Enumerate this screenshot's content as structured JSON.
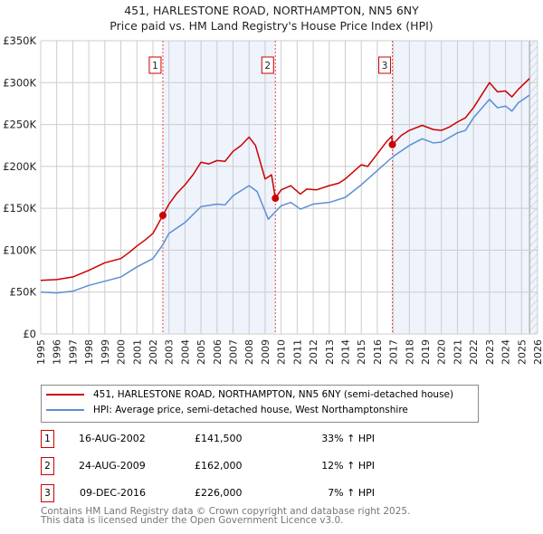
{
  "chart_data": {
    "type": "line",
    "title": "451, HARLESTONE ROAD, NORTHAMPTON, NN5 6NY",
    "subtitle": "Price paid vs. HM Land Registry's House Price Index (HPI)",
    "xlim": [
      1995,
      2026
    ],
    "ylim": [
      0,
      350000
    ],
    "x_ticks": [
      "1995",
      "1996",
      "1997",
      "1998",
      "1999",
      "2000",
      "2001",
      "2002",
      "2003",
      "2004",
      "2005",
      "2006",
      "2007",
      "2008",
      "2009",
      "2010",
      "2011",
      "2012",
      "2013",
      "2014",
      "2015",
      "2016",
      "2017",
      "2018",
      "2019",
      "2020",
      "2021",
      "2022",
      "2023",
      "2024",
      "2025",
      "2026"
    ],
    "y_ticks": [
      {
        "v": 0,
        "l": "£0"
      },
      {
        "v": 50000,
        "l": "£50K"
      },
      {
        "v": 100000,
        "l": "£100K"
      },
      {
        "v": 150000,
        "l": "£150K"
      },
      {
        "v": 200000,
        "l": "£200K"
      },
      {
        "v": 250000,
        "l": "£250K"
      },
      {
        "v": 300000,
        "l": "£300K"
      },
      {
        "v": 350000,
        "l": "£350K"
      }
    ],
    "grid": true,
    "series": [
      {
        "name": "451, HARLESTONE ROAD, NORTHAMPTON, NN5 6NY (semi-detached house)",
        "color": "#cc0000",
        "x": [
          1995,
          1996,
          1997,
          1998,
          1999,
          2000,
          2000.5,
          2001,
          2001.5,
          2002,
          2002.62,
          2003,
          2003.5,
          2004,
          2004.5,
          2005,
          2005.5,
          2006,
          2006.5,
          2007,
          2007.5,
          2008,
          2008.4,
          2008.7,
          2009,
          2009.4,
          2009.64,
          2010,
          2010.6,
          2011.2,
          2011.6,
          2012.2,
          2013,
          2013.6,
          2014,
          2015,
          2015.4,
          2016,
          2016.6,
          2016.9,
          2016.94,
          2017.5,
          2018,
          2018.8,
          2019.5,
          2020,
          2020.5,
          2021,
          2021.5,
          2022,
          2022.5,
          2023,
          2023.5,
          2024,
          2024.4,
          2024.8,
          2025.5
        ],
        "y": [
          64000,
          65000,
          68000,
          76000,
          85000,
          90000,
          97000,
          105000,
          112000,
          120000,
          141500,
          155000,
          168000,
          178000,
          190000,
          205000,
          203000,
          207000,
          206000,
          218000,
          225000,
          235000,
          225000,
          205000,
          185000,
          190000,
          162000,
          172000,
          177000,
          167000,
          173000,
          172000,
          177000,
          180000,
          185000,
          202000,
          200000,
          215000,
          230000,
          236000,
          226000,
          237000,
          243000,
          249000,
          244000,
          243000,
          247000,
          253000,
          258000,
          270000,
          285000,
          300000,
          289000,
          290000,
          283000,
          292000,
          305000
        ]
      },
      {
        "name": "HPI: Average price, semi-detached house, West Northamptonshire",
        "color": "#5b8fd4",
        "x": [
          1995,
          1996,
          1997,
          1998,
          1999,
          2000,
          2001,
          2002,
          2002.6,
          2003,
          2004,
          2005,
          2006,
          2006.5,
          2007,
          2008,
          2008.5,
          2009.2,
          2009.6,
          2010,
          2010.6,
          2011.2,
          2012,
          2013,
          2014,
          2015,
          2016,
          2017,
          2018,
          2018.8,
          2019.5,
          2020,
          2021,
          2021.5,
          2022,
          2023,
          2023.5,
          2024,
          2024.4,
          2024.8,
          2025.5
        ],
        "y": [
          50000,
          49000,
          51000,
          58000,
          63000,
          68000,
          80000,
          90000,
          106000,
          120000,
          133000,
          152000,
          155000,
          154000,
          165000,
          177000,
          170000,
          137000,
          145000,
          153000,
          157000,
          149000,
          155000,
          157000,
          163000,
          178000,
          195000,
          212000,
          225000,
          233000,
          228000,
          229000,
          240000,
          243000,
          258000,
          280000,
          270000,
          272000,
          266000,
          276000,
          285000
        ]
      }
    ],
    "sales": [
      {
        "n": "1",
        "x": 2002.62,
        "y": 141500,
        "date": "16-AUG-2002",
        "price": "£141,500",
        "hpi": "33% ↑ HPI"
      },
      {
        "n": "2",
        "x": 2009.64,
        "y": 162000,
        "date": "24-AUG-2009",
        "price": "£162,000",
        "hpi": "12% ↑ HPI"
      },
      {
        "n": "3",
        "x": 2016.94,
        "y": 226000,
        "date": "09-DEC-2016",
        "price": "£226,000",
        "hpi": "7% ↑ HPI"
      }
    ],
    "shade_color": "#eef3fc",
    "forecast_from": 2025.5
  },
  "footer": [
    "Contains HM Land Registry data © Crown copyright and database right 2025.",
    "This data is licensed under the Open Government Licence v3.0."
  ]
}
